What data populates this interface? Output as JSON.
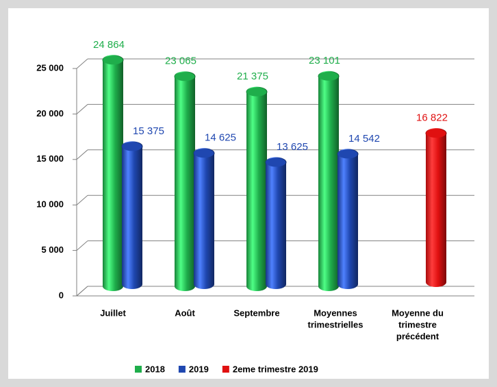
{
  "chart_data": {
    "type": "bar3d",
    "categories": [
      "Juillet",
      "Août",
      "Septembre",
      [
        "Moyennes",
        "trimestrielles"
      ],
      [
        "Moyenne du",
        "trimestre",
        "précédent"
      ]
    ],
    "series": [
      {
        "name": "2018",
        "color": "#1fae4b",
        "values": [
          24864,
          23065,
          21375,
          23101,
          null
        ],
        "value_labels": [
          "24 864",
          "23 065",
          "21 375",
          "23 101",
          null
        ]
      },
      {
        "name": "2019",
        "color": "#1f47b0",
        "values": [
          15375,
          14625,
          13625,
          14542,
          null
        ],
        "value_labels": [
          "15 375",
          "14 625",
          "13 625",
          "14 542",
          null
        ]
      },
      {
        "name": "2eme trimestre 2019",
        "color": "#e01010",
        "values": [
          null,
          null,
          null,
          null,
          16822
        ],
        "value_labels": [
          null,
          null,
          null,
          null,
          "16 822"
        ]
      }
    ],
    "ylim": [
      0,
      25000
    ],
    "yticks": [
      0,
      {
        "value": 5000,
        "label": "5 000"
      },
      {
        "value": 10000,
        "label": "10 000"
      },
      {
        "value": 15000,
        "label": "15 000"
      },
      {
        "value": 20000,
        "label": "20 000"
      },
      {
        "value": 25000,
        "label": "25 000"
      }
    ],
    "grid": true,
    "legend": "bottom"
  }
}
